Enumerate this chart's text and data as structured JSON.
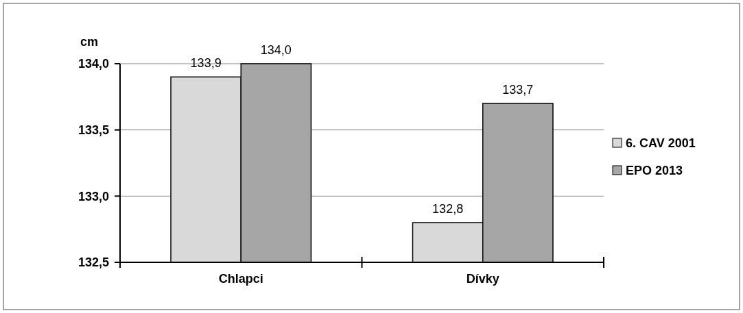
{
  "chart_data": {
    "type": "bar",
    "ylabel": "cm",
    "categories": [
      "Chlapci",
      "Dívky"
    ],
    "series": [
      {
        "name": "6. CAV 2001",
        "color": "#d9d9d9",
        "values": [
          133.9,
          132.8
        ],
        "value_labels": [
          "133,9",
          "132,8"
        ]
      },
      {
        "name": "EPO 2013",
        "color": "#a6a6a6",
        "values": [
          134.0,
          133.7
        ],
        "value_labels": [
          "134,0",
          "133,7"
        ]
      }
    ],
    "ylim": [
      132.5,
      134.0
    ],
    "yticks": [
      {
        "value": 132.5,
        "label": "132,5"
      },
      {
        "value": 133.0,
        "label": "133,0"
      },
      {
        "value": 133.5,
        "label": "133,5"
      },
      {
        "value": 134.0,
        "label": "134,0"
      }
    ],
    "grid": "y",
    "legend": "right"
  }
}
